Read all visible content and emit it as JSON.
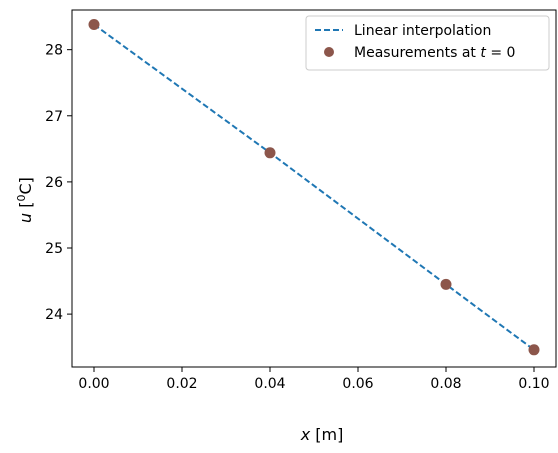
{
  "chart_data": {
    "type": "line",
    "xlabel": {
      "var": "x",
      "unit": " [m]"
    },
    "ylabel": {
      "var": "u",
      "pre": " [",
      "sup": "0",
      "post": "C]"
    },
    "xlim": [
      -0.005,
      0.105
    ],
    "ylim": [
      23.2,
      28.6
    ],
    "xticks": [
      "0.00",
      "0.02",
      "0.04",
      "0.06",
      "0.08",
      "0.10"
    ],
    "yticks": [
      "24",
      "25",
      "26",
      "27",
      "28"
    ],
    "grid": false,
    "legend_position": "top-right",
    "series": [
      {
        "name": "Linear interpolation",
        "kind": "dashed-line",
        "color": "#1f77b4",
        "x": [
          0.0,
          0.04,
          0.08,
          0.1
        ],
        "y": [
          28.38,
          26.44,
          24.45,
          23.46
        ]
      },
      {
        "name_parts": {
          "pre": "Measurements at ",
          "var": "t",
          "post": " = 0"
        },
        "kind": "markers",
        "color": "#8c564b",
        "x": [
          0.0,
          0.04,
          0.08,
          0.1
        ],
        "y": [
          28.38,
          26.44,
          24.45,
          23.46
        ]
      }
    ]
  }
}
